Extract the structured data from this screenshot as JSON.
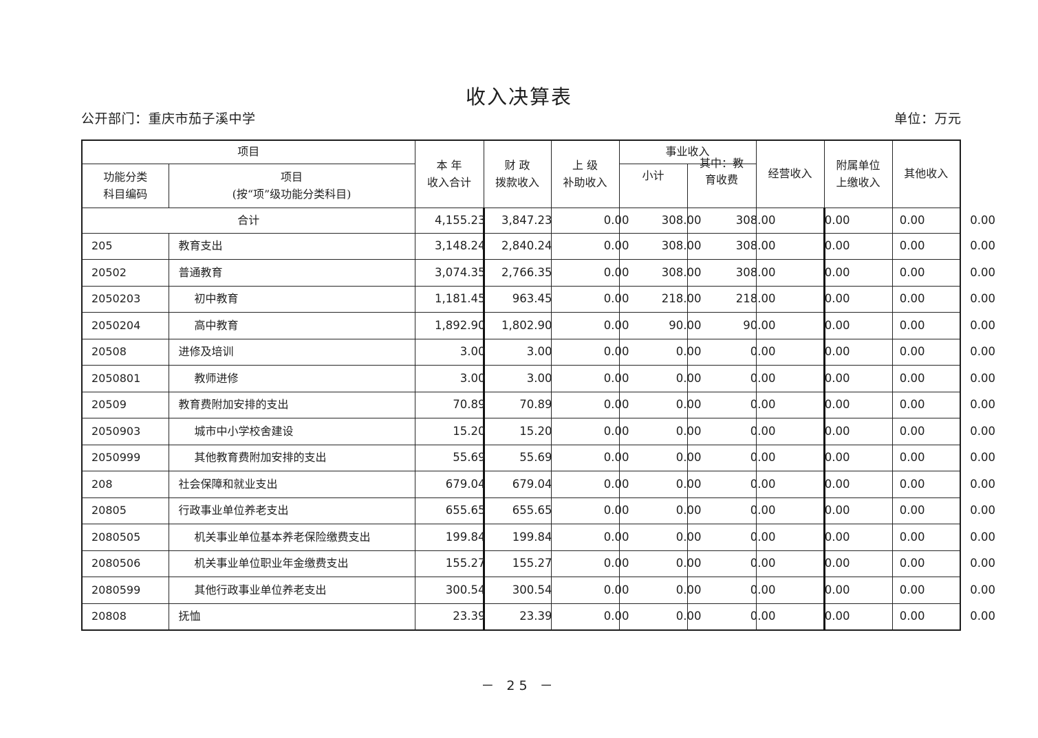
{
  "page": {
    "title": "收入决算表",
    "department_label": "公开部门：重庆市茄子溪中学",
    "unit_label": "单位：万元",
    "page_number": "－ 25 －"
  },
  "table": {
    "header": {
      "project_group": "项目",
      "function_code": [
        "功能分类",
        "科目编码"
      ],
      "project_item": [
        "项目",
        "(按“项”级功能分类科目)"
      ],
      "annual_total": [
        "本 年",
        "收入合计"
      ],
      "fiscal_appropriation": [
        "财 政",
        "拨款收入"
      ],
      "superior_subsidy": [
        "上 级",
        "补助收入"
      ],
      "business_income_group": "事业收入",
      "subtotal": "小计",
      "education_fee": [
        "其中：教",
        "育收费"
      ],
      "operating_income": "经营收入",
      "affiliated_remit": [
        "附属单位",
        "上缴收入"
      ],
      "other_income": "其他收入"
    },
    "rows": [
      {
        "code": "",
        "name": "合计",
        "total": true,
        "indent": 0,
        "values": [
          "4,155.23",
          "3,847.23",
          "0.00",
          "308.00",
          "308.00",
          "0.00",
          "0.00",
          "0.00"
        ]
      },
      {
        "code": "205",
        "name": "教育支出",
        "total": false,
        "indent": 1,
        "values": [
          "3,148.24",
          "2,840.24",
          "0.00",
          "308.00",
          "308.00",
          "0.00",
          "0.00",
          "0.00"
        ]
      },
      {
        "code": "20502",
        "name": "普通教育",
        "total": false,
        "indent": 1,
        "values": [
          "3,074.35",
          "2,766.35",
          "0.00",
          "308.00",
          "308.00",
          "0.00",
          "0.00",
          "0.00"
        ]
      },
      {
        "code": "2050203",
        "name": "初中教育",
        "total": false,
        "indent": 2,
        "values": [
          "1,181.45",
          "963.45",
          "0.00",
          "218.00",
          "218.00",
          "0.00",
          "0.00",
          "0.00"
        ]
      },
      {
        "code": "2050204",
        "name": "高中教育",
        "total": false,
        "indent": 2,
        "values": [
          "1,892.90",
          "1,802.90",
          "0.00",
          "90.00",
          "90.00",
          "0.00",
          "0.00",
          "0.00"
        ]
      },
      {
        "code": "20508",
        "name": "进修及培训",
        "total": false,
        "indent": 1,
        "values": [
          "3.00",
          "3.00",
          "0.00",
          "0.00",
          "0.00",
          "0.00",
          "0.00",
          "0.00"
        ]
      },
      {
        "code": "2050801",
        "name": "教师进修",
        "total": false,
        "indent": 2,
        "values": [
          "3.00",
          "3.00",
          "0.00",
          "0.00",
          "0.00",
          "0.00",
          "0.00",
          "0.00"
        ]
      },
      {
        "code": "20509",
        "name": "教育费附加安排的支出",
        "total": false,
        "indent": 1,
        "values": [
          "70.89",
          "70.89",
          "0.00",
          "0.00",
          "0.00",
          "0.00",
          "0.00",
          "0.00"
        ]
      },
      {
        "code": "2050903",
        "name": "城市中小学校舍建设",
        "total": false,
        "indent": 2,
        "values": [
          "15.20",
          "15.20",
          "0.00",
          "0.00",
          "0.00",
          "0.00",
          "0.00",
          "0.00"
        ]
      },
      {
        "code": "2050999",
        "name": "其他教育费附加安排的支出",
        "total": false,
        "indent": 2,
        "values": [
          "55.69",
          "55.69",
          "0.00",
          "0.00",
          "0.00",
          "0.00",
          "0.00",
          "0.00"
        ]
      },
      {
        "code": "208",
        "name": "社会保障和就业支出",
        "total": false,
        "indent": 1,
        "values": [
          "679.04",
          "679.04",
          "0.00",
          "0.00",
          "0.00",
          "0.00",
          "0.00",
          "0.00"
        ]
      },
      {
        "code": "20805",
        "name": "行政事业单位养老支出",
        "total": false,
        "indent": 1,
        "values": [
          "655.65",
          "655.65",
          "0.00",
          "0.00",
          "0.00",
          "0.00",
          "0.00",
          "0.00"
        ]
      },
      {
        "code": "2080505",
        "name": "机关事业单位基本养老保险缴费支出",
        "total": false,
        "indent": 2,
        "values": [
          "199.84",
          "199.84",
          "0.00",
          "0.00",
          "0.00",
          "0.00",
          "0.00",
          "0.00"
        ]
      },
      {
        "code": "2080506",
        "name": "机关事业单位职业年金缴费支出",
        "total": false,
        "indent": 2,
        "values": [
          "155.27",
          "155.27",
          "0.00",
          "0.00",
          "0.00",
          "0.00",
          "0.00",
          "0.00"
        ]
      },
      {
        "code": "2080599",
        "name": "其他行政事业单位养老支出",
        "total": false,
        "indent": 2,
        "values": [
          "300.54",
          "300.54",
          "0.00",
          "0.00",
          "0.00",
          "0.00",
          "0.00",
          "0.00"
        ]
      },
      {
        "code": "20808",
        "name": "抚恤",
        "total": false,
        "indent": 1,
        "values": [
          "23.39",
          "23.39",
          "0.00",
          "0.00",
          "0.00",
          "0.00",
          "0.00",
          "0.00"
        ]
      }
    ]
  }
}
